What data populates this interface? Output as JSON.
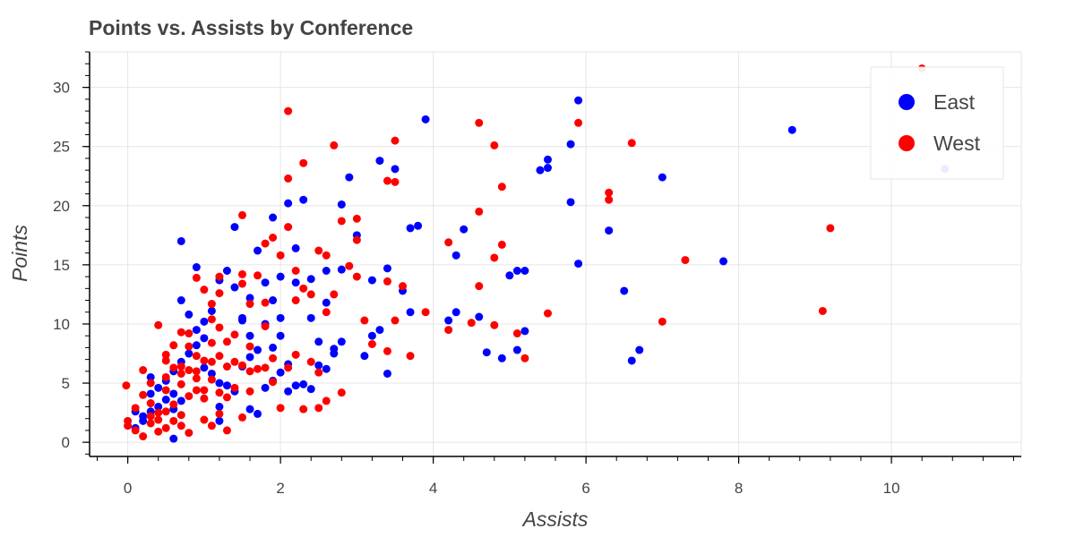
{
  "chart_data": {
    "type": "scatter",
    "title": "Points vs. Assists by Conference",
    "xlabel": "Assists",
    "ylabel": "Points",
    "xlim": [
      -0.5,
      11.7
    ],
    "ylim": [
      -1.2,
      33
    ],
    "x_ticks": [
      0,
      2,
      4,
      6,
      8,
      10
    ],
    "x_tick_labels": [
      "0",
      "2",
      "4",
      "6",
      "8",
      "10"
    ],
    "y_ticks": [
      0,
      5,
      10,
      15,
      20,
      25,
      30
    ],
    "y_tick_labels": [
      "0",
      "5",
      "10",
      "15",
      "20",
      "25",
      "30"
    ],
    "grid": true,
    "legend": "top-right",
    "series": [
      {
        "name": "East",
        "color": "#0000ff",
        "points": [
          [
            0.6,
            0.3
          ],
          [
            0.1,
            1.2
          ],
          [
            0.2,
            1.8
          ],
          [
            0.3,
            2.6
          ],
          [
            0.4,
            3.0
          ],
          [
            0.5,
            3.6
          ],
          [
            0.3,
            4.1
          ],
          [
            0.4,
            4.6
          ],
          [
            0.5,
            5.2
          ],
          [
            0.6,
            4.1
          ],
          [
            0.7,
            3.5
          ],
          [
            0.6,
            2.8
          ],
          [
            0.2,
            2.2
          ],
          [
            0.1,
            2.6
          ],
          [
            0.3,
            5.5
          ],
          [
            0.6,
            6.0
          ],
          [
            0.7,
            6.8
          ],
          [
            0.8,
            7.5
          ],
          [
            0.9,
            8.2
          ],
          [
            1.0,
            8.8
          ],
          [
            0.9,
            9.5
          ],
          [
            1.0,
            10.2
          ],
          [
            1.1,
            11.1
          ],
          [
            1.2,
            13.7
          ],
          [
            1.3,
            14.5
          ],
          [
            0.9,
            14.8
          ],
          [
            0.8,
            10.8
          ],
          [
            0.7,
            12.0
          ],
          [
            0.7,
            17.0
          ],
          [
            1.0,
            6.3
          ],
          [
            1.1,
            5.8
          ],
          [
            1.2,
            5.0
          ],
          [
            1.3,
            4.8
          ],
          [
            1.4,
            4.3
          ],
          [
            1.2,
            3.0
          ],
          [
            1.2,
            1.8
          ],
          [
            1.5,
            6.4
          ],
          [
            1.6,
            7.2
          ],
          [
            1.7,
            7.8
          ],
          [
            1.6,
            9.0
          ],
          [
            1.5,
            10.3
          ],
          [
            1.6,
            12.2
          ],
          [
            1.4,
            13.1
          ],
          [
            1.5,
            10.5
          ],
          [
            1.6,
            2.8
          ],
          [
            1.7,
            2.4
          ],
          [
            1.8,
            4.6
          ],
          [
            1.9,
            5.2
          ],
          [
            2.0,
            5.9
          ],
          [
            2.1,
            6.6
          ],
          [
            2.2,
            4.8
          ],
          [
            2.3,
            4.9
          ],
          [
            2.1,
            4.3
          ],
          [
            2.4,
            4.5
          ],
          [
            1.9,
            8.0
          ],
          [
            2.0,
            9.0
          ],
          [
            1.8,
            10.0
          ],
          [
            2.0,
            10.5
          ],
          [
            1.9,
            12.0
          ],
          [
            1.8,
            13.5
          ],
          [
            2.0,
            14.0
          ],
          [
            2.2,
            13.5
          ],
          [
            2.2,
            16.4
          ],
          [
            1.9,
            19.0
          ],
          [
            2.1,
            20.2
          ],
          [
            2.3,
            20.5
          ],
          [
            1.4,
            18.2
          ],
          [
            1.7,
            16.2
          ],
          [
            2.5,
            8.5
          ],
          [
            2.4,
            10.5
          ],
          [
            2.6,
            11.8
          ],
          [
            2.4,
            13.8
          ],
          [
            2.6,
            14.5
          ],
          [
            2.5,
            6.5
          ],
          [
            2.6,
            6.2
          ],
          [
            2.7,
            7.5
          ],
          [
            2.8,
            8.5
          ],
          [
            2.7,
            7.9
          ],
          [
            2.8,
            14.6
          ],
          [
            2.8,
            20.1
          ],
          [
            2.9,
            22.4
          ],
          [
            3.0,
            17.5
          ],
          [
            3.1,
            7.3
          ],
          [
            3.2,
            9.0
          ],
          [
            3.3,
            9.5
          ],
          [
            3.2,
            13.7
          ],
          [
            3.3,
            23.8
          ],
          [
            3.4,
            14.7
          ],
          [
            3.5,
            23.1
          ],
          [
            3.6,
            12.8
          ],
          [
            3.4,
            5.8
          ],
          [
            3.7,
            11.0
          ],
          [
            3.7,
            18.1
          ],
          [
            3.8,
            18.3
          ],
          [
            3.9,
            27.3
          ],
          [
            4.2,
            10.3
          ],
          [
            4.3,
            11.0
          ],
          [
            4.3,
            15.8
          ],
          [
            4.4,
            18.0
          ],
          [
            4.6,
            10.6
          ],
          [
            4.7,
            7.6
          ],
          [
            4.9,
            7.1
          ],
          [
            5.0,
            14.1
          ],
          [
            5.1,
            7.8
          ],
          [
            5.1,
            14.5
          ],
          [
            5.2,
            14.5
          ],
          [
            5.2,
            9.4
          ],
          [
            5.4,
            23.0
          ],
          [
            5.5,
            23.2
          ],
          [
            5.5,
            23.9
          ],
          [
            5.8,
            25.2
          ],
          [
            5.8,
            20.3
          ],
          [
            5.9,
            28.9
          ],
          [
            5.9,
            15.1
          ],
          [
            6.3,
            17.9
          ],
          [
            6.5,
            12.8
          ],
          [
            6.6,
            6.9
          ],
          [
            6.7,
            7.8
          ],
          [
            7.0,
            22.4
          ],
          [
            7.8,
            15.3
          ],
          [
            8.7,
            26.4
          ],
          [
            10.7,
            23.1
          ]
        ]
      },
      {
        "name": "West",
        "color": "#ff0000",
        "points": [
          [
            -0.02,
            4.8
          ],
          [
            0.0,
            1.4
          ],
          [
            0.0,
            1.8
          ],
          [
            0.1,
            1.0
          ],
          [
            0.1,
            2.9
          ],
          [
            0.2,
            0.5
          ],
          [
            0.2,
            4.0
          ],
          [
            0.2,
            6.1
          ],
          [
            0.3,
            1.6
          ],
          [
            0.3,
            2.2
          ],
          [
            0.3,
            3.3
          ],
          [
            0.3,
            5.0
          ],
          [
            0.4,
            0.9
          ],
          [
            0.4,
            1.9
          ],
          [
            0.4,
            2.5
          ],
          [
            0.4,
            9.9
          ],
          [
            0.5,
            1.2
          ],
          [
            0.5,
            2.6
          ],
          [
            0.5,
            4.4
          ],
          [
            0.5,
            5.5
          ],
          [
            0.5,
            6.9
          ],
          [
            0.5,
            7.4
          ],
          [
            0.6,
            1.8
          ],
          [
            0.6,
            3.2
          ],
          [
            0.6,
            6.3
          ],
          [
            0.6,
            8.2
          ],
          [
            0.7,
            1.4
          ],
          [
            0.7,
            2.3
          ],
          [
            0.7,
            4.9
          ],
          [
            0.7,
            5.8
          ],
          [
            0.7,
            6.4
          ],
          [
            0.7,
            9.3
          ],
          [
            0.8,
            0.8
          ],
          [
            0.8,
            3.9
          ],
          [
            0.8,
            6.1
          ],
          [
            0.8,
            8.1
          ],
          [
            0.8,
            9.2
          ],
          [
            0.9,
            4.4
          ],
          [
            0.9,
            5.4
          ],
          [
            0.9,
            6.0
          ],
          [
            0.9,
            7.3
          ],
          [
            0.9,
            13.9
          ],
          [
            1.0,
            1.9
          ],
          [
            1.0,
            3.7
          ],
          [
            1.0,
            4.4
          ],
          [
            1.0,
            6.9
          ],
          [
            1.0,
            12.9
          ],
          [
            1.1,
            1.4
          ],
          [
            1.1,
            5.3
          ],
          [
            1.1,
            6.8
          ],
          [
            1.1,
            8.4
          ],
          [
            1.1,
            10.4
          ],
          [
            1.1,
            11.7
          ],
          [
            1.2,
            2.4
          ],
          [
            1.2,
            4.2
          ],
          [
            1.2,
            7.3
          ],
          [
            1.2,
            9.7
          ],
          [
            1.2,
            12.6
          ],
          [
            1.2,
            14.0
          ],
          [
            1.3,
            1.0
          ],
          [
            1.3,
            3.8
          ],
          [
            1.3,
            6.4
          ],
          [
            1.3,
            8.5
          ],
          [
            1.4,
            4.6
          ],
          [
            1.4,
            6.8
          ],
          [
            1.4,
            9.1
          ],
          [
            1.5,
            2.1
          ],
          [
            1.5,
            6.5
          ],
          [
            1.5,
            13.4
          ],
          [
            1.5,
            14.2
          ],
          [
            1.5,
            19.2
          ],
          [
            1.6,
            4.3
          ],
          [
            1.6,
            6.0
          ],
          [
            1.6,
            8.1
          ],
          [
            1.6,
            11.7
          ],
          [
            1.7,
            6.2
          ],
          [
            1.7,
            14.1
          ],
          [
            1.8,
            6.3
          ],
          [
            1.8,
            9.8
          ],
          [
            1.8,
            11.8
          ],
          [
            1.8,
            16.8
          ],
          [
            1.9,
            5.1
          ],
          [
            1.9,
            7.1
          ],
          [
            1.9,
            17.3
          ],
          [
            2.0,
            2.9
          ],
          [
            2.0,
            15.8
          ],
          [
            2.1,
            6.3
          ],
          [
            2.1,
            18.2
          ],
          [
            2.1,
            22.3
          ],
          [
            2.1,
            28.0
          ],
          [
            2.2,
            7.4
          ],
          [
            2.2,
            12.0
          ],
          [
            2.2,
            14.5
          ],
          [
            2.3,
            2.8
          ],
          [
            2.3,
            13.0
          ],
          [
            2.3,
            23.6
          ],
          [
            2.4,
            6.8
          ],
          [
            2.4,
            12.5
          ],
          [
            2.5,
            2.9
          ],
          [
            2.5,
            16.2
          ],
          [
            2.5,
            5.9
          ],
          [
            2.6,
            3.5
          ],
          [
            2.6,
            15.8
          ],
          [
            2.6,
            11.0
          ],
          [
            2.7,
            12.5
          ],
          [
            2.7,
            25.1
          ],
          [
            2.8,
            4.2
          ],
          [
            2.8,
            18.7
          ],
          [
            2.9,
            14.9
          ],
          [
            3.0,
            14.0
          ],
          [
            3.0,
            17.1
          ],
          [
            3.0,
            18.9
          ],
          [
            3.1,
            10.3
          ],
          [
            3.2,
            8.3
          ],
          [
            3.4,
            7.7
          ],
          [
            3.4,
            13.6
          ],
          [
            3.4,
            22.1
          ],
          [
            3.5,
            10.3
          ],
          [
            3.5,
            22.0
          ],
          [
            3.5,
            25.5
          ],
          [
            3.6,
            13.2
          ],
          [
            3.7,
            7.3
          ],
          [
            3.9,
            11.0
          ],
          [
            4.2,
            9.5
          ],
          [
            4.2,
            16.9
          ],
          [
            4.5,
            10.1
          ],
          [
            4.6,
            13.2
          ],
          [
            4.6,
            19.5
          ],
          [
            4.6,
            27.0
          ],
          [
            4.8,
            9.9
          ],
          [
            4.8,
            15.6
          ],
          [
            4.8,
            25.1
          ],
          [
            4.9,
            16.7
          ],
          [
            4.9,
            21.6
          ],
          [
            5.1,
            9.2
          ],
          [
            5.2,
            7.1
          ],
          [
            5.5,
            10.9
          ],
          [
            5.9,
            27.0
          ],
          [
            6.3,
            20.5
          ],
          [
            6.3,
            21.1
          ],
          [
            6.6,
            25.3
          ],
          [
            7.0,
            10.2
          ],
          [
            7.3,
            15.4
          ],
          [
            9.1,
            11.1
          ],
          [
            9.2,
            18.1
          ],
          [
            10.4,
            31.6
          ]
        ]
      }
    ]
  }
}
